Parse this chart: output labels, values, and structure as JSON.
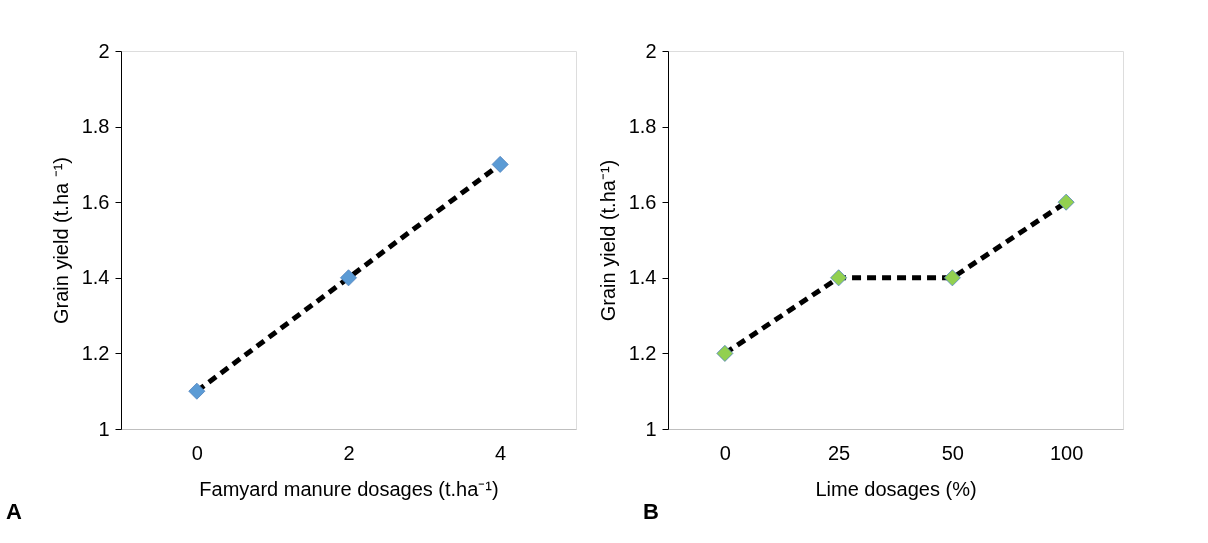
{
  "chart_data": [
    {
      "type": "line",
      "xlabel": "Famyard manure dosages (t.ha⁻¹)",
      "ylabel": "Grain yield (t.ha ⁻¹)",
      "categories": [
        "0",
        "2",
        "4"
      ],
      "series": [
        {
          "color": "#000000",
          "values": [
            1.1,
            1.4,
            1.7
          ],
          "marker": "none",
          "line_style": "dashed"
        },
        {
          "type": "scatter",
          "color": "#5b9bd5",
          "values": [
            1.1,
            1.4,
            1.7
          ],
          "marker": "diamond"
        }
      ],
      "ylim": [
        1,
        2
      ],
      "yticks": [
        1,
        1.2,
        1.4,
        1.6,
        1.8,
        2
      ],
      "grid": false,
      "annotations": [
        "A"
      ]
    },
    {
      "type": "line",
      "xlabel": "Lime dosages (%)",
      "ylabel": "Grain yield (t.ha⁻¹)",
      "categories": [
        "0",
        "25",
        "50",
        "100"
      ],
      "series": [
        {
          "color": "#000000",
          "values": [
            1.2,
            1.4,
            1.4,
            1.6
          ],
          "marker": "none",
          "line_style": "dashed"
        },
        {
          "type": "scatter",
          "color": "#92d050",
          "values": [
            1.2,
            1.4,
            1.4,
            1.6
          ],
          "marker": "diamond"
        }
      ],
      "ylim": [
        1,
        2
      ],
      "yticks": [
        1,
        1.2,
        1.4,
        1.6,
        1.8,
        2
      ],
      "grid": false,
      "annotations": [
        "B"
      ]
    }
  ]
}
